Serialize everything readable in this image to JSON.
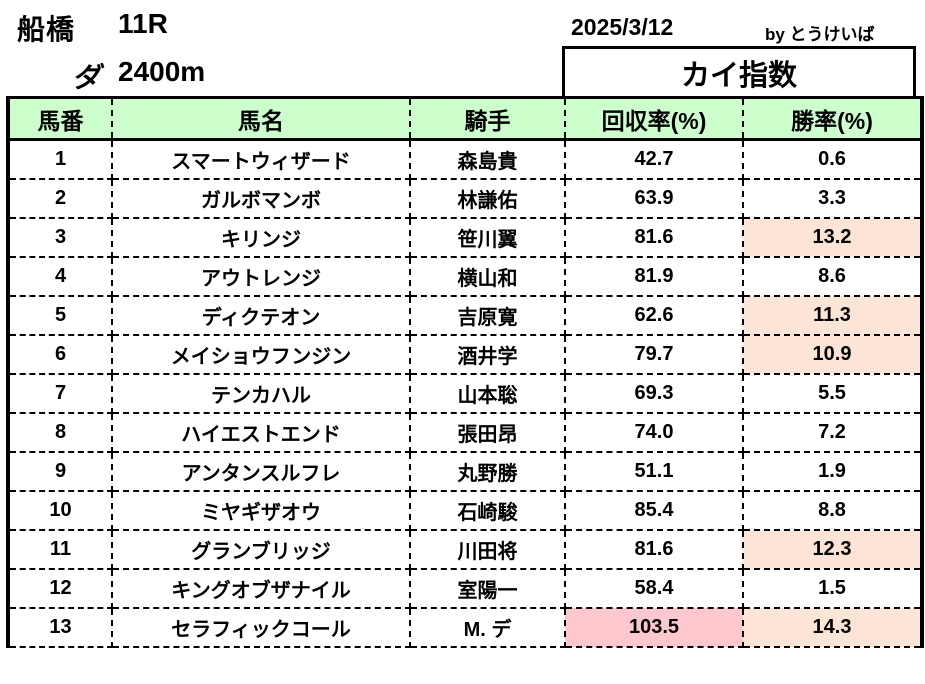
{
  "header": {
    "venue": "船橋",
    "race": "11R",
    "surface": "ダ",
    "distance": "2400m",
    "date": "2025/3/12",
    "byline": "by とうけいば",
    "index_title": "カイ指数"
  },
  "columns": [
    "馬番",
    "馬名",
    "騎手",
    "回収率(%)",
    "勝率(%)"
  ],
  "colors": {
    "header_bg": "#ccffcc",
    "win_highlight": "#fce4d6",
    "return_highlight": "#ffc7ce"
  },
  "rows": [
    {
      "no": "1",
      "horse": "スマートウィザード",
      "jockey": "森島貴",
      "return": "42.7",
      "win": "0.6",
      "hl_return": false,
      "hl_win": false
    },
    {
      "no": "2",
      "horse": "ガルボマンボ",
      "jockey": "林謙佑",
      "return": "63.9",
      "win": "3.3",
      "hl_return": false,
      "hl_win": false
    },
    {
      "no": "3",
      "horse": "キリンジ",
      "jockey": "笹川翼",
      "return": "81.6",
      "win": "13.2",
      "hl_return": false,
      "hl_win": true
    },
    {
      "no": "4",
      "horse": "アウトレンジ",
      "jockey": "横山和",
      "return": "81.9",
      "win": "8.6",
      "hl_return": false,
      "hl_win": false
    },
    {
      "no": "5",
      "horse": "ディクテオン",
      "jockey": "吉原寛",
      "return": "62.6",
      "win": "11.3",
      "hl_return": false,
      "hl_win": true
    },
    {
      "no": "6",
      "horse": "メイショウフンジン",
      "jockey": "酒井学",
      "return": "79.7",
      "win": "10.9",
      "hl_return": false,
      "hl_win": true
    },
    {
      "no": "7",
      "horse": "テンカハル",
      "jockey": "山本聡",
      "return": "69.3",
      "win": "5.5",
      "hl_return": false,
      "hl_win": false
    },
    {
      "no": "8",
      "horse": "ハイエストエンド",
      "jockey": "張田昂",
      "return": "74.0",
      "win": "7.2",
      "hl_return": false,
      "hl_win": false
    },
    {
      "no": "9",
      "horse": "アンタンスルフレ",
      "jockey": "丸野勝",
      "return": "51.1",
      "win": "1.9",
      "hl_return": false,
      "hl_win": false
    },
    {
      "no": "10",
      "horse": "ミヤギザオウ",
      "jockey": "石崎駿",
      "return": "85.4",
      "win": "8.8",
      "hl_return": false,
      "hl_win": false
    },
    {
      "no": "11",
      "horse": "グランブリッジ",
      "jockey": "川田将",
      "return": "81.6",
      "win": "12.3",
      "hl_return": false,
      "hl_win": true
    },
    {
      "no": "12",
      "horse": "キングオブザナイル",
      "jockey": "室陽一",
      "return": "58.4",
      "win": "1.5",
      "hl_return": false,
      "hl_win": false
    },
    {
      "no": "13",
      "horse": "セラフィックコール",
      "jockey": "M. デ",
      "return": "103.5",
      "win": "14.3",
      "hl_return": true,
      "hl_win": true
    }
  ]
}
